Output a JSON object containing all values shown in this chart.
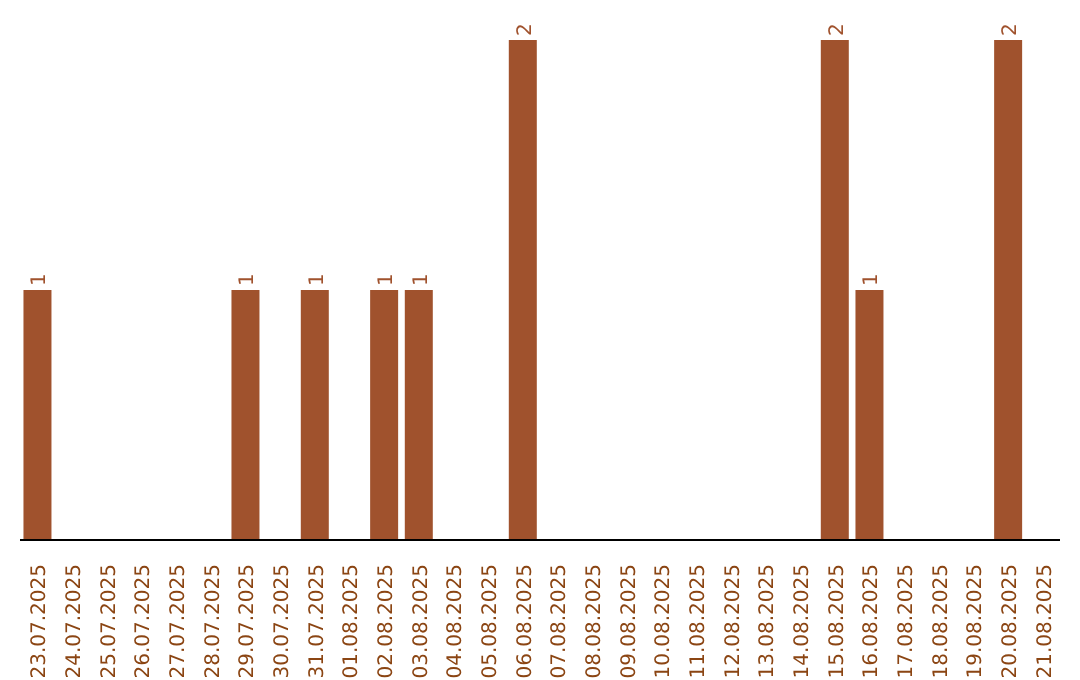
{
  "chart_data": {
    "type": "bar",
    "categories": [
      "23.07.2025",
      "24.07.2025",
      "25.07.2025",
      "26.07.2025",
      "27.07.2025",
      "28.07.2025",
      "29.07.2025",
      "30.07.2025",
      "31.07.2025",
      "01.08.2025",
      "02.08.2025",
      "03.08.2025",
      "04.08.2025",
      "05.08.2025",
      "06.08.2025",
      "07.08.2025",
      "08.08.2025",
      "09.08.2025",
      "10.08.2025",
      "11.08.2025",
      "12.08.2025",
      "13.08.2025",
      "14.08.2025",
      "15.08.2025",
      "16.08.2025",
      "17.08.2025",
      "18.08.2025",
      "19.08.2025",
      "20.08.2025",
      "21.08.2025"
    ],
    "values": [
      1,
      0,
      0,
      0,
      0,
      0,
      1,
      0,
      1,
      0,
      1,
      1,
      0,
      0,
      2,
      0,
      0,
      0,
      0,
      0,
      0,
      0,
      0,
      2,
      1,
      0,
      0,
      0,
      2,
      0
    ],
    "value_labels": [
      "1",
      null,
      null,
      null,
      null,
      null,
      "1",
      null,
      "1",
      null,
      "1",
      "1",
      null,
      null,
      "2",
      null,
      null,
      null,
      null,
      null,
      null,
      null,
      null,
      "2",
      "1",
      null,
      null,
      null,
      "2",
      null
    ],
    "color": "#a0522d",
    "grid": false,
    "tick_labels": "x"
  }
}
